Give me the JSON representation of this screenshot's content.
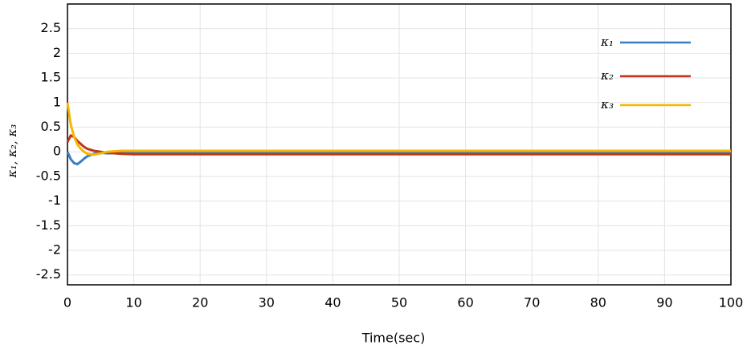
{
  "chart_data": {
    "type": "line",
    "x_label": "Time(sec)",
    "y_label": "κ₁, κ₂, κ₃",
    "x": [
      0,
      0.5,
      1,
      1.5,
      2,
      2.5,
      3,
      4,
      5,
      6,
      8,
      10,
      100
    ],
    "series": [
      {
        "name": "κ₁",
        "color": "#3a7fc1",
        "values": [
          0,
          -0.15,
          -0.23,
          -0.25,
          -0.2,
          -0.14,
          -0.09,
          -0.04,
          -0.02,
          -0.03,
          -0.03,
          -0.03,
          -0.03
        ]
      },
      {
        "name": "κ₂",
        "color": "#c0341d",
        "values": [
          0.2,
          0.33,
          0.3,
          0.22,
          0.16,
          0.1,
          0.06,
          0.02,
          0,
          -0.02,
          -0.04,
          -0.05,
          -0.05
        ]
      },
      {
        "name": "κ₃",
        "color": "#f5b800",
        "values": [
          1,
          0.55,
          0.3,
          0.15,
          0.06,
          0,
          -0.04,
          -0.06,
          -0.03,
          0,
          0.02,
          0.02,
          0.02
        ]
      }
    ],
    "xlim": [
      0,
      100
    ],
    "xticks": [
      0,
      10,
      20,
      30,
      40,
      50,
      60,
      70,
      80,
      90,
      100
    ],
    "ylim": [
      -2.7,
      3
    ],
    "yticks": [
      2.5,
      2,
      1.5,
      1,
      0.5,
      0,
      -0.5,
      -1,
      -1.5,
      -2,
      -2.5
    ],
    "grid": true,
    "legend": "upper right"
  }
}
